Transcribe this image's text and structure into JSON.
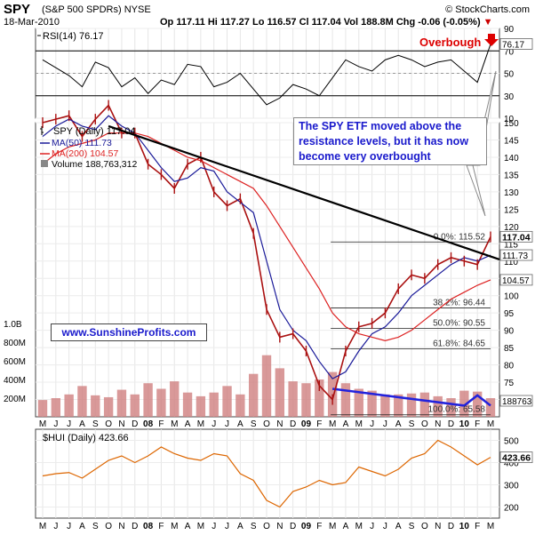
{
  "header": {
    "symbol": "SPY",
    "description": "(S&P 500 SPDRs) NYSE",
    "date": "18-Mar-2010",
    "open": "Op 117.11",
    "high": "Hi 117.27",
    "low": "Lo 116.57",
    "close": "Cl 117.04",
    "volume": "Vol 188.8M",
    "change": "Chg -0.06 (-0.05%)",
    "copyright": "© StockCharts.com"
  },
  "colors": {
    "price_bar": "#aa1111",
    "ma50": "#1a1a99",
    "ma200": "#dd2222",
    "volume": "#d08080",
    "hui": "#dd6600",
    "annotation_text": "#1a1acc",
    "overbought": "#dd0000"
  },
  "annotations": {
    "note": "The SPY ETF moved above the resistance levels, but it has now become very overbought",
    "site": "www.SunshineProfits.com",
    "overbought": "Overbough"
  },
  "chart_data": [
    {
      "type": "line",
      "panel": "RSI",
      "legend": "RSI(14) 76.17",
      "current_label": "76.17",
      "ylim": [
        10,
        90
      ],
      "yticks": [
        10,
        30,
        50,
        70,
        90
      ],
      "reference_lines": [
        30,
        70
      ],
      "x": [
        "2007-05",
        "2007-06",
        "2007-07",
        "2007-08",
        "2007-09",
        "2007-10",
        "2007-11",
        "2007-12",
        "2008-01",
        "2008-02",
        "2008-03",
        "2008-04",
        "2008-05",
        "2008-06",
        "2008-07",
        "2008-08",
        "2008-09",
        "2008-10",
        "2008-11",
        "2008-12",
        "2009-01",
        "2009-02",
        "2009-03",
        "2009-04",
        "2009-05",
        "2009-06",
        "2009-07",
        "2009-08",
        "2009-09",
        "2009-10",
        "2009-11",
        "2009-12",
        "2010-01",
        "2010-02",
        "2010-03"
      ],
      "values": [
        62,
        55,
        48,
        38,
        60,
        55,
        38,
        46,
        32,
        44,
        40,
        58,
        56,
        38,
        42,
        50,
        36,
        22,
        28,
        40,
        36,
        30,
        46,
        62,
        56,
        52,
        62,
        66,
        62,
        56,
        60,
        62,
        52,
        42,
        76
      ]
    },
    {
      "type": "line",
      "panel": "Price",
      "title": "SPY (Daily) 117.04",
      "legend": [
        "MA(50) 111.73",
        "MA(200) 104.57",
        "Volume 188,763,312"
      ],
      "ylim": [
        65,
        150
      ],
      "yticks": [
        70,
        75,
        80,
        85,
        90,
        95,
        100,
        105,
        110,
        115,
        120,
        125,
        130,
        135,
        140,
        145,
        150
      ],
      "last_price_label": "117.04",
      "ma50_label": "111.73",
      "ma200_label": "104.57",
      "volume_label": "188763",
      "xtick_labels": [
        "M",
        "J",
        "J",
        "A",
        "S",
        "O",
        "N",
        "D",
        "08",
        "F",
        "M",
        "A",
        "M",
        "J",
        "J",
        "A",
        "S",
        "O",
        "N",
        "D",
        "09",
        "F",
        "M",
        "A",
        "M",
        "J",
        "J",
        "A",
        "S",
        "O",
        "N",
        "D",
        "10",
        "F",
        "M"
      ],
      "x": [
        "2007-05",
        "2007-06",
        "2007-07",
        "2007-08",
        "2007-09",
        "2007-10",
        "2007-11",
        "2007-12",
        "2008-01",
        "2008-02",
        "2008-03",
        "2008-04",
        "2008-05",
        "2008-06",
        "2008-07",
        "2008-08",
        "2008-09",
        "2008-10",
        "2008-11",
        "2008-12",
        "2009-01",
        "2009-02",
        "2009-03",
        "2009-04",
        "2009-05",
        "2009-06",
        "2009-07",
        "2009-08",
        "2009-09",
        "2009-10",
        "2009-11",
        "2009-12",
        "2010-01",
        "2010-02",
        "2010-03"
      ],
      "series": [
        {
          "name": "SPY (Daily)",
          "values": [
            150,
            151,
            152,
            146,
            151,
            155,
            147,
            147,
            138,
            135,
            131,
            138,
            140,
            130,
            126,
            128,
            118,
            96,
            88,
            89,
            84,
            74,
            70,
            84,
            91,
            92,
            95,
            102,
            106,
            105,
            109,
            111,
            110,
            109,
            117
          ]
        },
        {
          "name": "MA(50)",
          "values": [
            146,
            149,
            151,
            149,
            148,
            152,
            149,
            147,
            142,
            137,
            133,
            134,
            137,
            136,
            130,
            127,
            124,
            110,
            96,
            90,
            87,
            81,
            76,
            78,
            84,
            89,
            91,
            95,
            100,
            103,
            106,
            109,
            111,
            110,
            111.73
          ]
        },
        {
          "name": "MA(200)",
          "values": [
            138,
            141,
            143,
            144,
            145,
            147,
            147,
            147,
            146,
            144,
            142,
            140,
            139,
            137,
            135,
            133,
            131,
            126,
            120,
            114,
            108,
            102,
            95,
            91,
            89,
            88,
            87,
            88,
            90,
            93,
            96,
            99,
            101,
            103,
            104.57
          ]
        }
      ],
      "fibonacci": [
        {
          "label": "0.0%: 115.52",
          "value": 115.52
        },
        {
          "label": "38.2%: 96.44",
          "value": 96.44
        },
        {
          "label": "50.0%: 90.55",
          "value": 90.55
        },
        {
          "label": "61.8%: 84.65",
          "value": 84.65
        },
        {
          "label": "100.0%: 65.58",
          "value": 65.58
        }
      ],
      "resistance_line": {
        "from": [
          "2007-10",
          149
        ],
        "to": [
          "2010-03",
          112
        ]
      }
    },
    {
      "type": "bar",
      "panel": "Volume",
      "yticks_labels": [
        "200M",
        "400M",
        "600M",
        "800M",
        "1.0B"
      ],
      "ylim": [
        0,
        1000
      ],
      "x": [
        "2007-05",
        "2007-06",
        "2007-07",
        "2007-08",
        "2007-09",
        "2007-10",
        "2007-11",
        "2007-12",
        "2008-01",
        "2008-02",
        "2008-03",
        "2008-04",
        "2008-05",
        "2008-06",
        "2008-07",
        "2008-08",
        "2008-09",
        "2008-10",
        "2008-11",
        "2008-12",
        "2009-01",
        "2009-02",
        "2009-03",
        "2009-04",
        "2009-05",
        "2009-06",
        "2009-07",
        "2009-08",
        "2009-09",
        "2009-10",
        "2009-11",
        "2009-12",
        "2010-01",
        "2010-02",
        "2010-03"
      ],
      "values": [
        180,
        200,
        240,
        330,
        230,
        210,
        290,
        240,
        360,
        300,
        380,
        260,
        220,
        260,
        330,
        240,
        460,
        660,
        520,
        380,
        360,
        400,
        480,
        360,
        300,
        280,
        240,
        240,
        250,
        260,
        220,
        200,
        280,
        270,
        200
      ],
      "volume_trend_line": [
        [
          "2009-03",
          300
        ],
        [
          "2010-01",
          120
        ],
        [
          "2010-02",
          230
        ],
        [
          "2010-03",
          120
        ]
      ]
    },
    {
      "type": "line",
      "panel": "HUI",
      "legend": "$HUI (Daily) 423.66",
      "current_label": "423.66",
      "ylim": [
        150,
        550
      ],
      "yticks": [
        200,
        300,
        400,
        500
      ],
      "x": [
        "2007-05",
        "2007-06",
        "2007-07",
        "2007-08",
        "2007-09",
        "2007-10",
        "2007-11",
        "2007-12",
        "2008-01",
        "2008-02",
        "2008-03",
        "2008-04",
        "2008-05",
        "2008-06",
        "2008-07",
        "2008-08",
        "2008-09",
        "2008-10",
        "2008-11",
        "2008-12",
        "2009-01",
        "2009-02",
        "2009-03",
        "2009-04",
        "2009-05",
        "2009-06",
        "2009-07",
        "2009-08",
        "2009-09",
        "2009-10",
        "2009-11",
        "2009-12",
        "2010-01",
        "2010-02",
        "2010-03"
      ],
      "values": [
        340,
        350,
        355,
        330,
        370,
        410,
        430,
        400,
        430,
        470,
        440,
        420,
        410,
        440,
        430,
        350,
        320,
        230,
        200,
        270,
        290,
        320,
        300,
        310,
        380,
        360,
        340,
        370,
        420,
        440,
        500,
        470,
        430,
        390,
        423.66
      ]
    }
  ]
}
